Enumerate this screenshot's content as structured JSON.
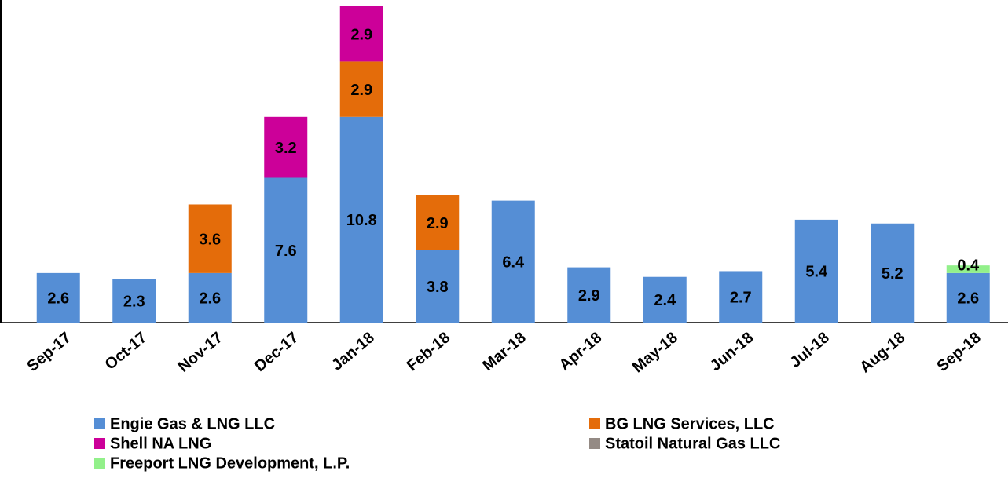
{
  "chart_data": {
    "type": "stacked_bar",
    "categories": [
      "Sep-17",
      "Oct-17",
      "Nov-17",
      "Dec-17",
      "Jan-18",
      "Feb-18",
      "Mar-18",
      "Apr-18",
      "May-18",
      "Jun-18",
      "Jul-18",
      "Aug-18",
      "Sep-18"
    ],
    "series": [
      {
        "name": "Engie Gas & LNG LLC",
        "color": "#558ed5",
        "values": [
          2.6,
          2.3,
          2.6,
          7.6,
          10.8,
          3.8,
          6.4,
          2.9,
          2.4,
          2.7,
          5.4,
          5.2,
          2.6
        ]
      },
      {
        "name": "BG LNG Services, LLC",
        "color": "#e46c0a",
        "values": [
          null,
          null,
          3.6,
          null,
          2.9,
          2.9,
          null,
          null,
          null,
          null,
          null,
          null,
          null
        ]
      },
      {
        "name": "Shell NA LNG",
        "color": "#cc0099",
        "values": [
          null,
          null,
          null,
          3.2,
          2.9,
          null,
          null,
          null,
          null,
          null,
          null,
          null,
          null
        ]
      },
      {
        "name": "Statoil Natural Gas LLC",
        "color": "#948a84",
        "values": [
          null,
          null,
          null,
          null,
          null,
          null,
          null,
          null,
          null,
          null,
          null,
          null,
          null
        ]
      },
      {
        "name": "Freeport LNG Development, L.P.",
        "color": "#92f08a",
        "values": [
          null,
          null,
          null,
          null,
          null,
          null,
          null,
          null,
          null,
          null,
          null,
          null,
          0.4
        ]
      }
    ],
    "legend": "bottom"
  }
}
